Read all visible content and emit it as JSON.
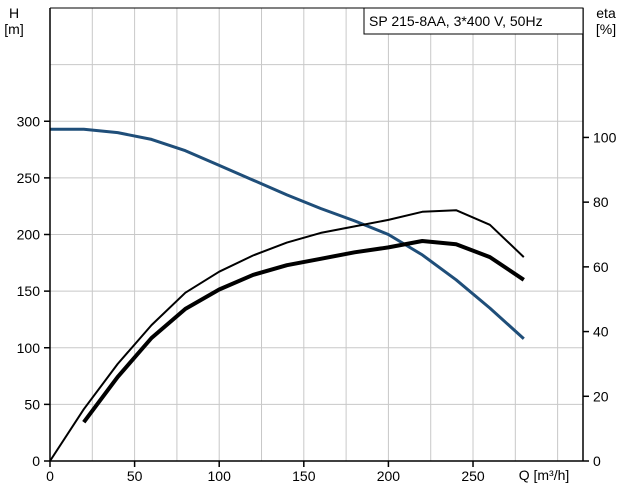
{
  "chart_data": {
    "type": "line",
    "title": "SP 215-8AA, 3*400 V, 50Hz",
    "xlabel": "Q [m³/h]",
    "ylabel": "H [m]",
    "y2label": "eta [%]",
    "xlim": [
      0,
      315
    ],
    "ylim": [
      0,
      400
    ],
    "y2lim": [
      0,
      140
    ],
    "x_ticks": [
      0,
      50,
      100,
      150,
      200,
      250
    ],
    "y_ticks": [
      0,
      50,
      100,
      150,
      200,
      250,
      300
    ],
    "y2_ticks": [
      0,
      20,
      40,
      60,
      80,
      100
    ],
    "grid": true,
    "series": [
      {
        "axis": "left",
        "color": "#1f4e79",
        "x": [
          0,
          10,
          20,
          40,
          60,
          80,
          100,
          120,
          140,
          160,
          180,
          200,
          220,
          240,
          260,
          280
        ],
        "y": [
          293,
          293,
          293,
          290,
          284,
          274,
          261,
          248,
          235,
          223,
          212,
          200,
          182,
          160,
          135,
          108
        ]
      },
      {
        "axis": "right",
        "color": "#000000",
        "x": [
          0,
          20,
          40,
          60,
          80,
          100,
          120,
          140,
          160,
          180,
          200,
          220,
          240,
          260,
          280
        ],
        "y": [
          0,
          16,
          30,
          42,
          52,
          58.5,
          63.5,
          67.5,
          70.5,
          72.5,
          74.5,
          77,
          77.5,
          73,
          63
        ]
      },
      {
        "axis": "right",
        "color": "#000000",
        "x": [
          20,
          40,
          60,
          80,
          100,
          120,
          140,
          160,
          180,
          200,
          220,
          240,
          260,
          280
        ],
        "y": [
          12,
          26,
          38,
          47,
          53,
          57.5,
          60.5,
          62.5,
          64.5,
          66,
          68,
          67,
          63,
          56
        ]
      }
    ]
  }
}
